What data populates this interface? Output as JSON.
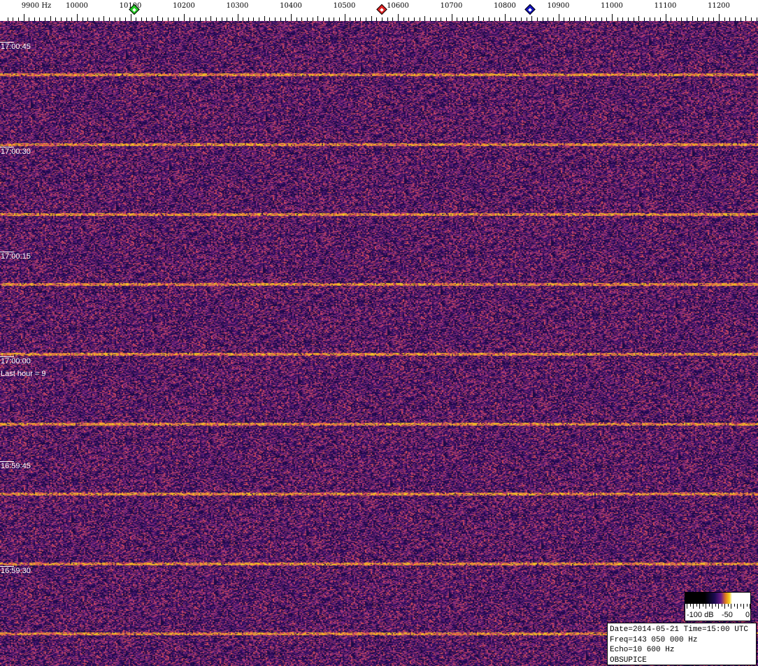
{
  "frequency_axis": {
    "unit_label": "9900 Hz",
    "labels": [
      "10000",
      "10100",
      "10200",
      "10300",
      "10400",
      "10500",
      "10600",
      "10700",
      "10800",
      "10900",
      "11000",
      "11100",
      "11200"
    ],
    "range_hz": [
      9870,
      11300
    ]
  },
  "markers": [
    {
      "name": "green-marker",
      "freq_hz": 10107,
      "color": "#22cc22"
    },
    {
      "name": "red-marker",
      "freq_hz": 10570,
      "color": "#dd2222"
    },
    {
      "name": "blue-marker",
      "freq_hz": 10847,
      "color": "#1111bb"
    }
  ],
  "time_labels": [
    "17:00:45",
    "17:00:30",
    "17:00:15",
    "17:00:00",
    "16:59:45",
    "16:59:30"
  ],
  "last_hour": "Last hour = 9",
  "colorbar": {
    "labels": [
      "-100 dB",
      "-50",
      "0"
    ]
  },
  "info": {
    "line1": "Date=2014-05-21 Time=15:00 UTC",
    "line2": "Freq=143 050 000 Hz",
    "line3": "Echo=10 600 Hz",
    "line4": "OBSUPICE"
  },
  "colors": {
    "background": "#3a1a70",
    "signal": "#f0a020"
  }
}
